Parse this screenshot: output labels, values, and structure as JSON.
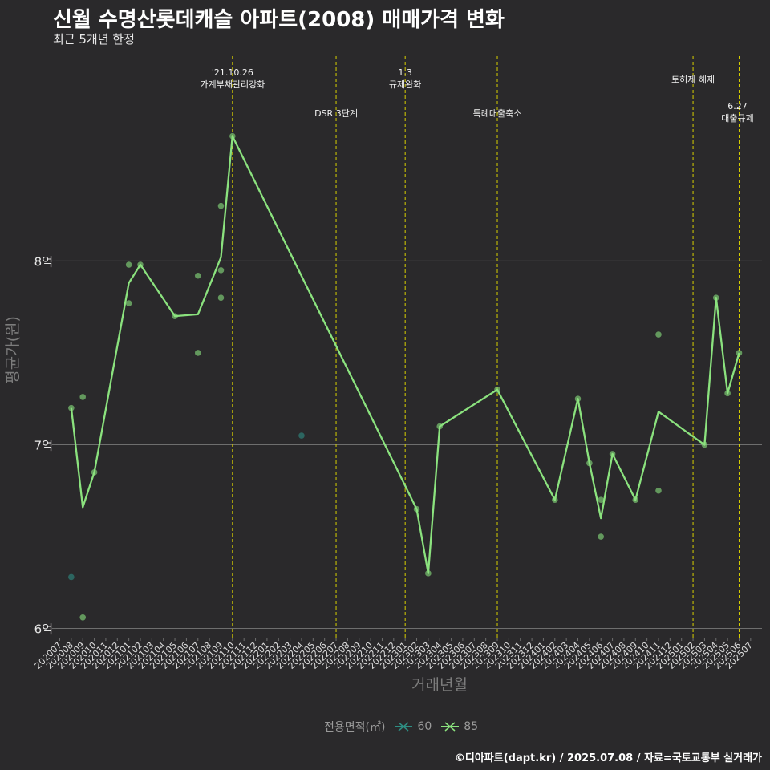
{
  "header": {
    "title": "신월 수명산롯데캐슬 아파트(2008) 매매가격 변화",
    "subtitle": "최근 5개년 한정"
  },
  "caption": "©디아파트(dapt.kr) / 2025.07.08 / 자료=국토교통부 실거래가",
  "colors": {
    "background": "#2a292b",
    "gridline": "#6e6e6e",
    "event_line": "#d7d000",
    "series_60": "#2e8e83",
    "series_85": "#8be27e"
  },
  "chart_data": {
    "type": "line",
    "xlabel": "거래년월",
    "ylabel": "평균가(원)",
    "categories": [
      "202007",
      "202008",
      "202009",
      "202010",
      "202011",
      "202012",
      "202101",
      "202102",
      "202103",
      "202104",
      "202105",
      "202106",
      "202107",
      "202108",
      "202109",
      "202110",
      "202111",
      "202112",
      "202201",
      "202202",
      "202203",
      "202204",
      "202205",
      "202206",
      "202207",
      "202208",
      "202209",
      "202210",
      "202211",
      "202212",
      "202301",
      "202302",
      "202303",
      "202304",
      "202305",
      "202306",
      "202307",
      "202308",
      "202309",
      "202310",
      "202311",
      "202312",
      "202401",
      "202402",
      "202403",
      "202404",
      "202405",
      "202406",
      "202407",
      "202408",
      "202409",
      "202410",
      "202411",
      "202412",
      "202501",
      "202502",
      "202503",
      "202504",
      "202505",
      "202506",
      "202507"
    ],
    "y_ticks": [
      {
        "value": 6.0,
        "label": "6억"
      },
      {
        "value": 7.0,
        "label": "7억"
      },
      {
        "value": 8.0,
        "label": "8억"
      }
    ],
    "ylim": [
      5.95,
      9.15
    ],
    "grid": true,
    "legend": {
      "title": "전용면적(㎡)",
      "position": "bottom",
      "items": [
        {
          "name": "60",
          "color_key": "series_60"
        },
        {
          "name": "85",
          "color_key": "series_85"
        }
      ]
    },
    "series": [
      {
        "name": "60",
        "points": [
          {
            "x": "202008",
            "y": 6.28
          },
          {
            "x": "202204",
            "y": 7.05
          }
        ],
        "line": []
      },
      {
        "name": "85",
        "points": [
          {
            "x": "202008",
            "y": 7.2
          },
          {
            "x": "202009",
            "y": 7.26
          },
          {
            "x": "202009",
            "y": 6.06
          },
          {
            "x": "202010",
            "y": 6.85
          },
          {
            "x": "202101",
            "y": 7.98
          },
          {
            "x": "202101",
            "y": 7.77
          },
          {
            "x": "202102",
            "y": 7.98
          },
          {
            "x": "202105",
            "y": 7.7
          },
          {
            "x": "202107",
            "y": 7.92
          },
          {
            "x": "202107",
            "y": 7.5
          },
          {
            "x": "202109",
            "y": 8.3
          },
          {
            "x": "202109",
            "y": 7.95
          },
          {
            "x": "202109",
            "y": 7.8
          },
          {
            "x": "202110",
            "y": 8.68
          },
          {
            "x": "202302",
            "y": 6.65
          },
          {
            "x": "202303",
            "y": 6.3
          },
          {
            "x": "202304",
            "y": 7.1
          },
          {
            "x": "202309",
            "y": 7.3
          },
          {
            "x": "202402",
            "y": 6.7
          },
          {
            "x": "202404",
            "y": 7.25
          },
          {
            "x": "202405",
            "y": 6.9
          },
          {
            "x": "202406",
            "y": 6.7
          },
          {
            "x": "202406",
            "y": 6.5
          },
          {
            "x": "202407",
            "y": 6.95
          },
          {
            "x": "202409",
            "y": 6.7
          },
          {
            "x": "202411",
            "y": 7.6
          },
          {
            "x": "202411",
            "y": 6.75
          },
          {
            "x": "202503",
            "y": 7.0
          },
          {
            "x": "202504",
            "y": 7.8
          },
          {
            "x": "202505",
            "y": 7.28
          },
          {
            "x": "202506",
            "y": 7.5
          }
        ],
        "line": [
          {
            "x": "202008",
            "y": 7.2
          },
          {
            "x": "202009",
            "y": 6.66
          },
          {
            "x": "202010",
            "y": 6.85
          },
          {
            "x": "202101",
            "y": 7.88
          },
          {
            "x": "202102",
            "y": 7.98
          },
          {
            "x": "202105",
            "y": 7.7
          },
          {
            "x": "202107",
            "y": 7.71
          },
          {
            "x": "202109",
            "y": 8.02
          },
          {
            "x": "202110",
            "y": 8.68
          },
          {
            "x": "202302",
            "y": 6.65
          },
          {
            "x": "202303",
            "y": 6.3
          },
          {
            "x": "202304",
            "y": 7.1
          },
          {
            "x": "202309",
            "y": 7.3
          },
          {
            "x": "202402",
            "y": 6.7
          },
          {
            "x": "202404",
            "y": 7.25
          },
          {
            "x": "202405",
            "y": 6.9
          },
          {
            "x": "202406",
            "y": 6.6
          },
          {
            "x": "202407",
            "y": 6.95
          },
          {
            "x": "202409",
            "y": 6.7
          },
          {
            "x": "202411",
            "y": 7.18
          },
          {
            "x": "202503",
            "y": 7.0
          },
          {
            "x": "202504",
            "y": 7.8
          },
          {
            "x": "202505",
            "y": 7.28
          },
          {
            "x": "202506",
            "y": 7.5
          }
        ]
      }
    ],
    "events": [
      {
        "x": "202110",
        "lines": [
          "'21.10.26",
          "가계부채관리강화"
        ],
        "row": "top"
      },
      {
        "x": "202207",
        "lines": [
          "DSR 3단계"
        ],
        "row": "low"
      },
      {
        "x": "202301",
        "lines": [
          "1.3",
          "규제완화"
        ],
        "row": "top"
      },
      {
        "x": "202309",
        "lines": [
          "특례대출축소"
        ],
        "row": "low"
      },
      {
        "x": "202502",
        "lines": [
          "토허제 해제"
        ],
        "row": "mid"
      },
      {
        "x": "202506",
        "lines": [
          "6.27",
          "대출규제"
        ],
        "row": "right"
      }
    ]
  }
}
